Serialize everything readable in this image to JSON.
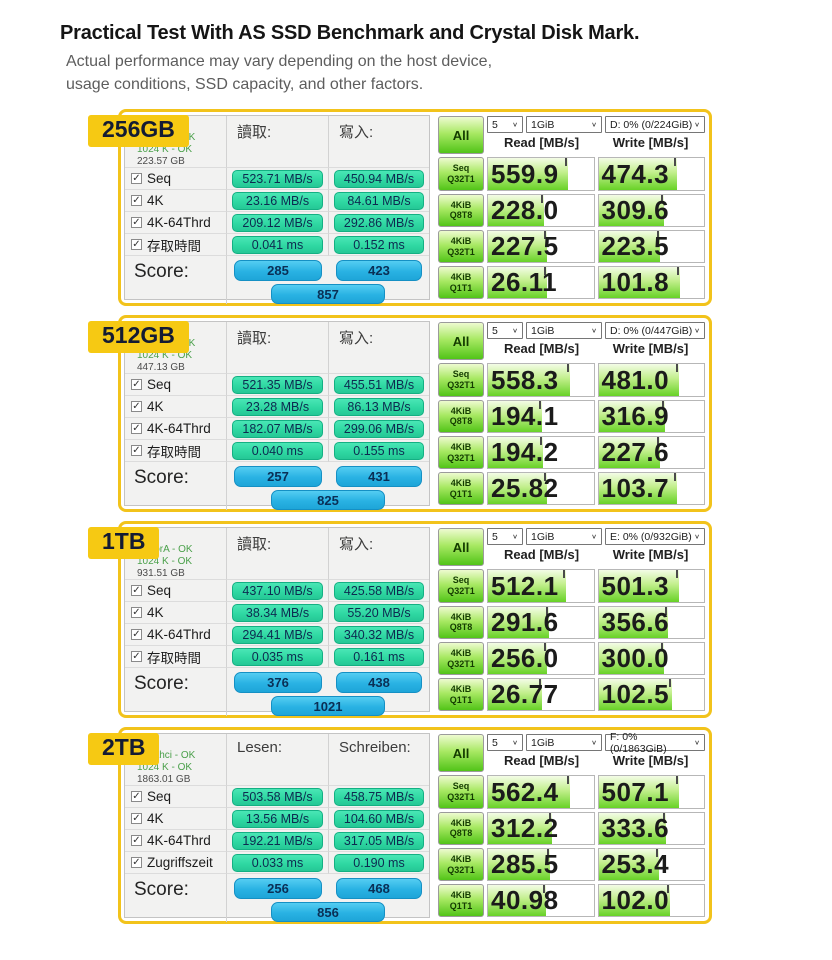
{
  "header": {
    "title": "Practical Test With AS SSD Benchmark and Crystal Disk Mark.",
    "subtitle_line1": "Actual performance may vary depending on the host device,",
    "subtitle_line2": "usage conditions, SSD capacity, and other factors."
  },
  "icons": {
    "checkbox": "✓",
    "chevron": "∨"
  },
  "colors": {
    "frame_yellow": "#f2c31b",
    "badge_yellow": "#f6c913",
    "teal_pill": "#2fd8a2",
    "blue_pill": "#29b2e3",
    "cdm_green": "#52c418"
  },
  "panels": [
    {
      "capacity": "256GB",
      "driver": [
        "storahci - OK",
        "1024 K - OK",
        "223.57 GB"
      ],
      "read_header": "讀取:",
      "write_header": "寫入:",
      "tests": [
        {
          "label": "Seq",
          "read": "523.71 MB/s",
          "write": "450.94 MB/s"
        },
        {
          "label": "4K",
          "read": "23.16 MB/s",
          "write": "84.61 MB/s"
        },
        {
          "label": "4K-64Thrd",
          "read": "209.12 MB/s",
          "write": "292.86 MB/s"
        },
        {
          "label": "存取時間",
          "read": "0.041 ms",
          "write": "0.152 ms"
        }
      ],
      "score": {
        "label": "Score:",
        "read": "285",
        "write": "423",
        "total": "857"
      },
      "cdm": {
        "all_label": "All",
        "runs": "5",
        "test_size": "1GiB",
        "drive": "D: 0% (0/224GiB)",
        "read_header": "Read [MB/s]",
        "write_header": "Write [MB/s]",
        "rows": [
          {
            "line1": "Seq",
            "line2": "Q32T1",
            "read": "559.9",
            "write": "474.3",
            "read_fill": 76,
            "write_fill": 74
          },
          {
            "line1": "4KiB",
            "line2": "Q8T8",
            "read": "228.0",
            "write": "309.6",
            "read_fill": 53,
            "write_fill": 62
          },
          {
            "line1": "4KiB",
            "line2": "Q32T1",
            "read": "227.5",
            "write": "223.5",
            "read_fill": 56,
            "write_fill": 58
          },
          {
            "line1": "4KiB",
            "line2": "Q1T1",
            "read": "26.11",
            "write": "101.8",
            "read_fill": 56,
            "write_fill": 77
          }
        ]
      }
    },
    {
      "capacity": "512GB",
      "driver": [
        "storahci - OK",
        "1024 K - OK",
        "447.13 GB"
      ],
      "read_header": "讀取:",
      "write_header": "寫入:",
      "tests": [
        {
          "label": "Seq",
          "read": "521.35 MB/s",
          "write": "455.51 MB/s"
        },
        {
          "label": "4K",
          "read": "23.28 MB/s",
          "write": "86.13 MB/s"
        },
        {
          "label": "4K-64Thrd",
          "read": "182.07 MB/s",
          "write": "299.06 MB/s"
        },
        {
          "label": "存取時間",
          "read": "0.040 ms",
          "write": "0.155 ms"
        }
      ],
      "score": {
        "label": "Score:",
        "read": "257",
        "write": "431",
        "total": "825"
      },
      "cdm": {
        "all_label": "All",
        "runs": "5",
        "test_size": "1GiB",
        "drive": "D: 0% (0/447GiB)",
        "read_header": "Read [MB/s]",
        "write_header": "Write [MB/s]",
        "rows": [
          {
            "line1": "Seq",
            "line2": "Q32T1",
            "read": "558.3",
            "write": "481.0",
            "read_fill": 78,
            "write_fill": 76
          },
          {
            "line1": "4KiB",
            "line2": "Q8T8",
            "read": "194.1",
            "write": "316.9",
            "read_fill": 51,
            "write_fill": 63
          },
          {
            "line1": "4KiB",
            "line2": "Q32T1",
            "read": "194.2",
            "write": "227.6",
            "read_fill": 52,
            "write_fill": 58
          },
          {
            "line1": "4KiB",
            "line2": "Q1T1",
            "read": "25.82",
            "write": "103.7",
            "read_fill": 56,
            "write_fill": 74
          }
        ]
      }
    },
    {
      "capacity": "1TB",
      "driver": [
        "iaStorA - OK",
        "1024 K - OK",
        "931.51 GB"
      ],
      "read_header": "讀取:",
      "write_header": "寫入:",
      "tests": [
        {
          "label": "Seq",
          "read": "437.10 MB/s",
          "write": "425.58 MB/s"
        },
        {
          "label": "4K",
          "read": "38.34 MB/s",
          "write": "55.20 MB/s"
        },
        {
          "label": "4K-64Thrd",
          "read": "294.41 MB/s",
          "write": "340.32 MB/s"
        },
        {
          "label": "存取時間",
          "read": "0.035 ms",
          "write": "0.161 ms"
        }
      ],
      "score": {
        "label": "Score:",
        "read": "376",
        "write": "438",
        "total": "1021"
      },
      "cdm": {
        "all_label": "All",
        "runs": "5",
        "test_size": "1GiB",
        "drive": "E: 0% (0/932GiB)",
        "read_header": "Read [MB/s]",
        "write_header": "Write [MB/s]",
        "rows": [
          {
            "line1": "Seq",
            "line2": "Q32T1",
            "read": "512.1",
            "write": "501.3",
            "read_fill": 74,
            "write_fill": 76
          },
          {
            "line1": "4KiB",
            "line2": "Q8T8",
            "read": "291.6",
            "write": "356.6",
            "read_fill": 58,
            "write_fill": 66
          },
          {
            "line1": "4KiB",
            "line2": "Q32T1",
            "read": "256.0",
            "write": "300.0",
            "read_fill": 56,
            "write_fill": 62
          },
          {
            "line1": "4KiB",
            "line2": "Q1T1",
            "read": "26.77",
            "write": "102.5",
            "read_fill": 51,
            "write_fill": 70
          }
        ]
      }
    },
    {
      "capacity": "2TB",
      "driver": [
        "storahci - OK",
        "1024 K - OK",
        "1863.01 GB"
      ],
      "read_header": "Lesen:",
      "write_header": "Schreiben:",
      "tests": [
        {
          "label": "Seq",
          "read": "503.58 MB/s",
          "write": "458.75 MB/s"
        },
        {
          "label": "4K",
          "read": "13.56 MB/s",
          "write": "104.60 MB/s"
        },
        {
          "label": "4K-64Thrd",
          "read": "192.21 MB/s",
          "write": "317.05 MB/s"
        },
        {
          "label": "Zugriffszeit",
          "read": "0.033 ms",
          "write": "0.190 ms"
        }
      ],
      "score": {
        "label": "Score:",
        "read": "256",
        "write": "468",
        "total": "856"
      },
      "cdm": {
        "all_label": "All",
        "runs": "5",
        "test_size": "1GiB",
        "drive": "F: 0% (0/1863GiB)",
        "read_header": "Read [MB/s]",
        "write_header": "Write [MB/s]",
        "rows": [
          {
            "line1": "Seq",
            "line2": "Q32T1",
            "read": "562.4",
            "write": "507.1",
            "read_fill": 78,
            "write_fill": 76
          },
          {
            "line1": "4KiB",
            "line2": "Q8T8",
            "read": "312.2",
            "write": "333.6",
            "read_fill": 61,
            "write_fill": 64
          },
          {
            "line1": "4KiB",
            "line2": "Q32T1",
            "read": "285.5",
            "write": "253.4",
            "read_fill": 59,
            "write_fill": 57
          },
          {
            "line1": "4KiB",
            "line2": "Q1T1",
            "read": "40.98",
            "write": "102.0",
            "read_fill": 55,
            "write_fill": 68
          }
        ]
      }
    }
  ]
}
